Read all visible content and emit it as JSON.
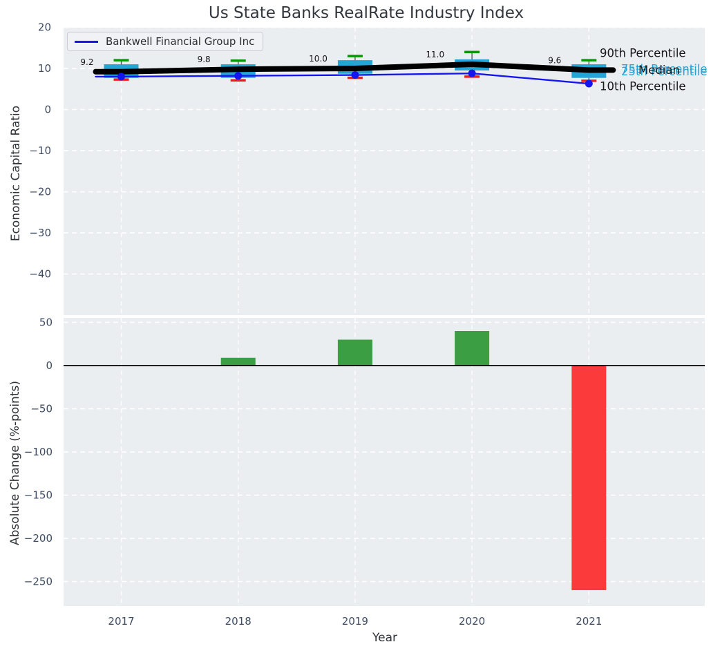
{
  "title": "Us State Banks RealRate Industry Index",
  "legend": {
    "label": "Bankwell Financial Group Inc"
  },
  "colors": {
    "plot_background": "#eaeef0",
    "grid": "#ffffff",
    "box_fill": "#25a4d6",
    "median_line": "#000000",
    "company_line": "#1515f0",
    "whisker_top_cap": "#0a960a",
    "whisker_bottom_cap": "#ee1c1c",
    "whisker_stem": "#4d4d4d",
    "bar_positive": "#3b9e42",
    "bar_negative": "#fb3b3b",
    "tick_label": "#3d4c63"
  },
  "chart_data": [
    {
      "type": "boxplot-line",
      "title": "Us State Banks RealRate Industry Index",
      "ylabel": "Economic Capital Ratio",
      "x": [
        2017,
        2018,
        2019,
        2020,
        2021
      ],
      "yticks": [
        20,
        10,
        0,
        -10,
        -20,
        -30,
        -40
      ],
      "ylim": [
        -50,
        20.5
      ],
      "grid": true,
      "legend_position": "upper left",
      "series": [
        {
          "name": "90th Percentile",
          "values": [
            12.0,
            11.9,
            13.0,
            14.0,
            12.0
          ]
        },
        {
          "name": "75th Percentile",
          "values": [
            11.0,
            11.0,
            12.0,
            12.2,
            11.0
          ]
        },
        {
          "name": "Median",
          "values": [
            9.2,
            9.8,
            10.0,
            11.0,
            9.6
          ]
        },
        {
          "name": "25th Percentile",
          "values": [
            7.7,
            7.7,
            8.7,
            9.5,
            7.7
          ]
        },
        {
          "name": "10th Percentile",
          "values": [
            7.3,
            7.1,
            7.7,
            8.0,
            7.0
          ]
        },
        {
          "name": "Bankwell Financial Group Inc",
          "values": [
            8.0,
            8.2,
            8.4,
            8.8,
            6.3
          ]
        }
      ],
      "median_labels": [
        "9.2",
        "9.8",
        "10.0",
        "11.0",
        "9.6"
      ],
      "annotations": [
        {
          "text": "90th Percentile",
          "color": "dark"
        },
        {
          "text": "75th Percentile",
          "color": "cyan"
        },
        {
          "text": "25th Percentile",
          "color": "cyan"
        },
        {
          "text": "Median",
          "color": "dark"
        },
        {
          "text": "10th Percentile",
          "color": "dark"
        }
      ]
    },
    {
      "type": "bar",
      "ylabel": "Absolute Change (%-points)",
      "xlabel": "Year",
      "categories": [
        2017,
        2018,
        2019,
        2020,
        2021
      ],
      "values": [
        null,
        9,
        30,
        40,
        -260
      ],
      "yticks": [
        50,
        0,
        -50,
        -100,
        -150,
        -200,
        -250
      ],
      "zero_line": true,
      "grid": true
    }
  ]
}
